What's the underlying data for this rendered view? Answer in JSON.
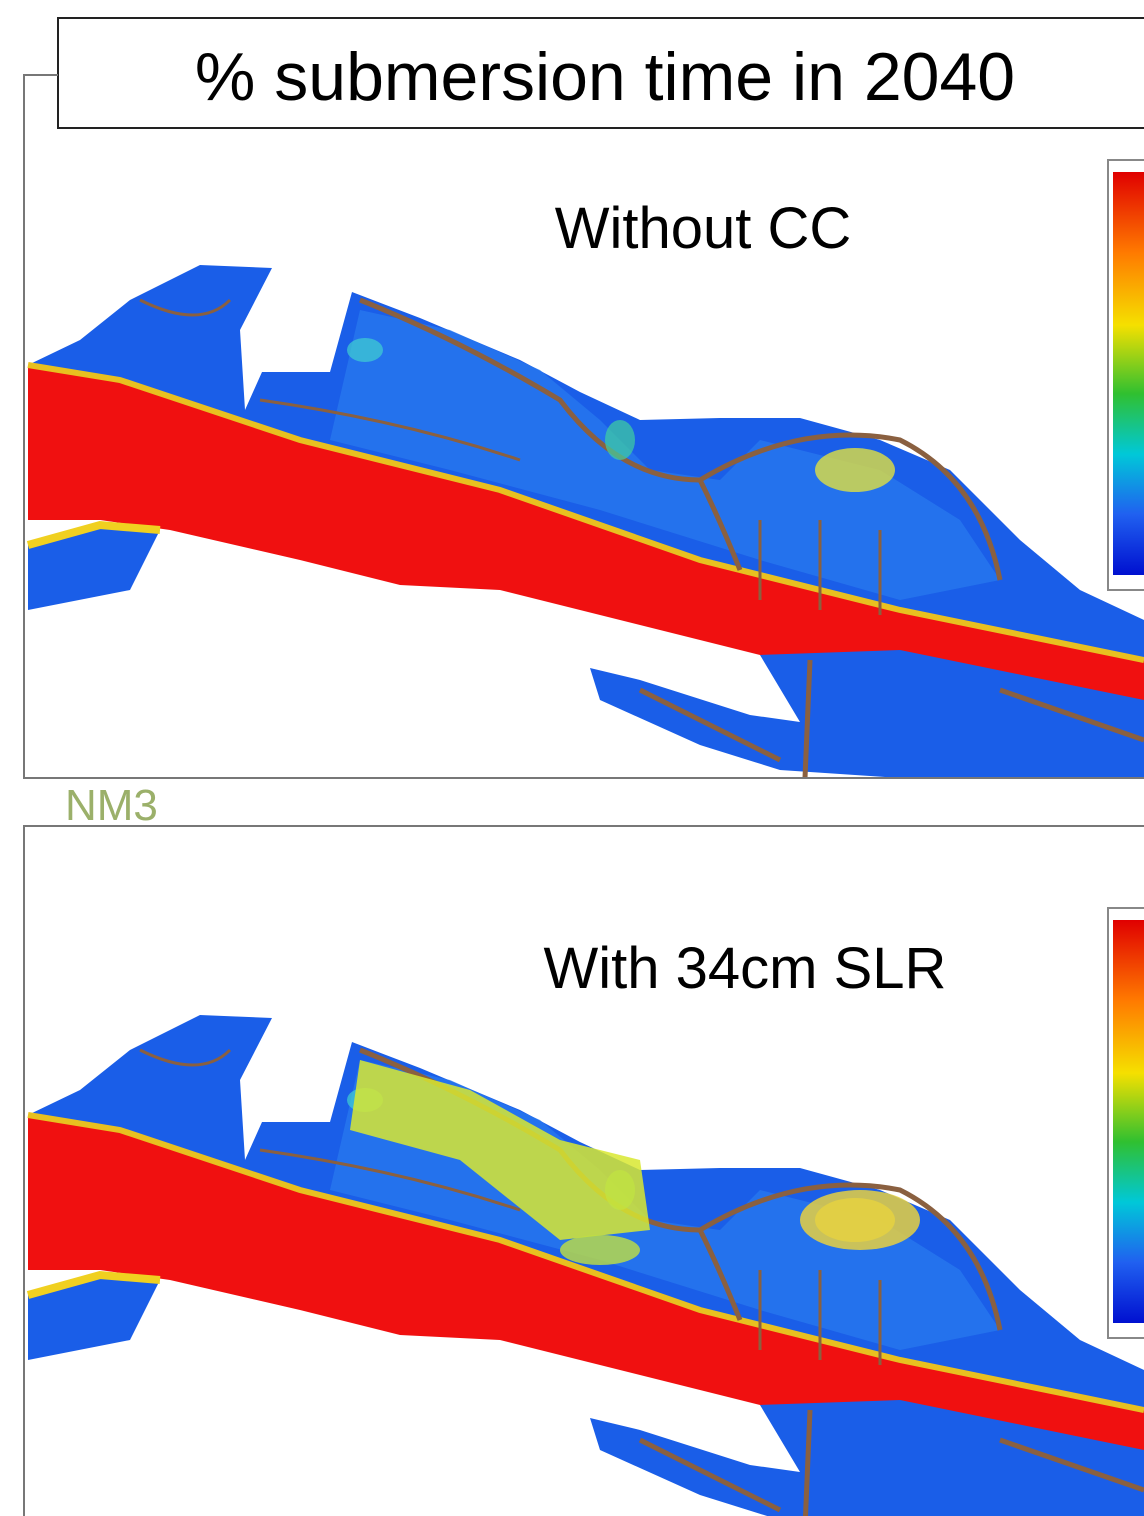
{
  "title": "% submersion time in 2040",
  "panels": [
    {
      "label": "Without CC"
    },
    {
      "label": "With 34cm SLR"
    }
  ],
  "site_label": "NM3"
}
